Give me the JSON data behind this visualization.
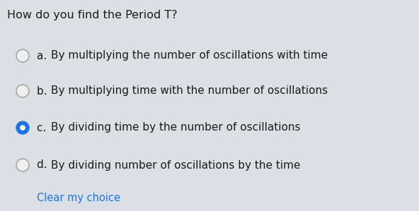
{
  "background_color": "#dce0e5",
  "question": "How do you find the Period T?",
  "question_fontsize": 11.5,
  "question_color": "#1a1a1a",
  "options": [
    {
      "label": "a.   ",
      "text": "By multiplying the number of oscillations with time",
      "selected": false
    },
    {
      "label": "b.   ",
      "text": "By multiplying time with the number of oscillations",
      "selected": false
    },
    {
      "label": "c.   ",
      "text": "By dividing time by the number of oscillations",
      "selected": true
    },
    {
      "label": "d.   ",
      "text": "By dividing number of oscillations by the time",
      "selected": false
    }
  ],
  "option_fontsize": 11.0,
  "option_text_color": "#1a1a1a",
  "unselected_circle_color": "#f0f0f0",
  "unselected_circle_edge": "#aaaaaa",
  "selected_circle_color": "#1a73e8",
  "selected_inner_color": "#ffffff",
  "clear_text": "Clear my choice",
  "clear_color": "#1a73e8",
  "clear_fontsize": 10.5
}
